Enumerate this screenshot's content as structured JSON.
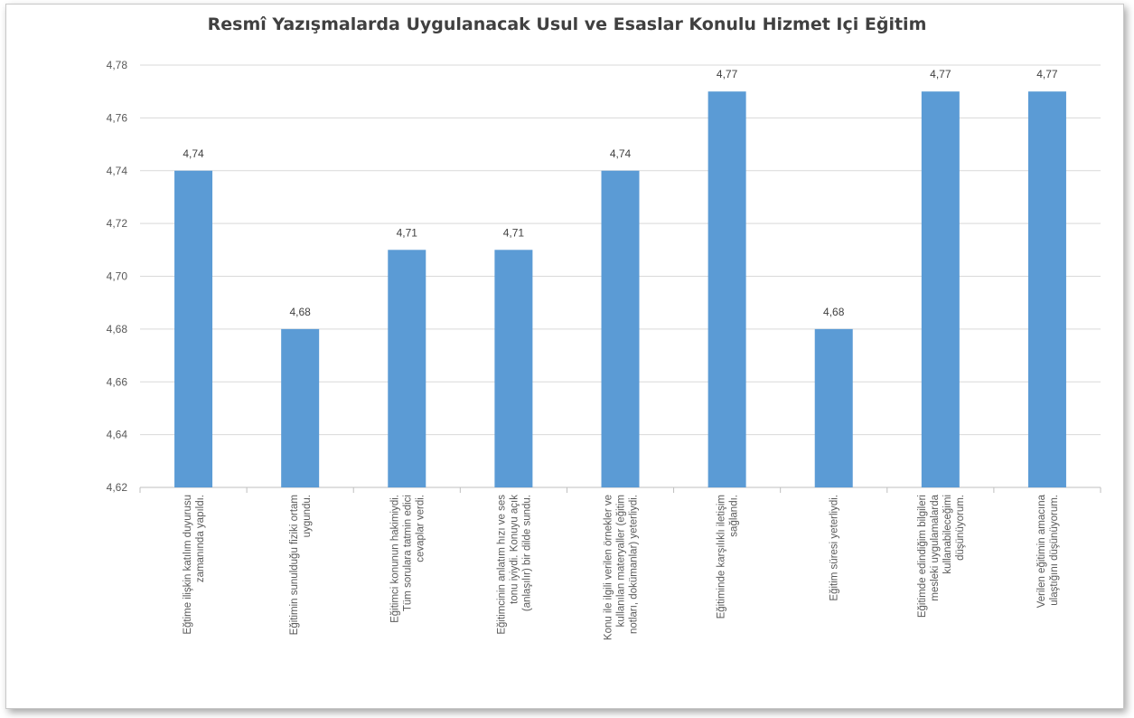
{
  "chart_data": {
    "type": "bar",
    "title": "Resmî Yazışmalarda Uygulanacak Usul ve Esaslar Konulu Hizmet Içi Eğitim",
    "xlabel": "",
    "ylabel": "",
    "ylim": [
      4.62,
      4.78
    ],
    "yticks": [
      "4,62",
      "4,64",
      "4,66",
      "4,68",
      "4,70",
      "4,72",
      "4,74",
      "4,76",
      "4,78"
    ],
    "grid": true,
    "legend": "none",
    "bar_color": "#5b9bd5",
    "categories": [
      [
        "Eğtime ilişkin katılım duyurusu",
        "zamanında yapıldı."
      ],
      [
        "Eğitimin sunulduğu fiziki ortam",
        "uygundu."
      ],
      [
        "Eğitimci konunun hakimiydi.",
        "Tüm sorulara tatmin edici",
        "cevaplar verdi."
      ],
      [
        "Eğitimcinin anlatım hızı ve ses",
        "tonu iyiydi. Konuyu açık",
        "(anlaşılır) bir dilde sundu."
      ],
      [
        "Konu ile ilgili verilen örnekler ve",
        "kullanılan materyaller (eğitim",
        "notları, dokümanlar) yeterliydi."
      ],
      [
        "Eğitiminde karşılıklı iletişim",
        "sağlandı."
      ],
      [
        "Eğitim süresi yeterliydi."
      ],
      [
        "Eğitimde edindiğim bilgileri",
        "mesleki uygulamalarda",
        "kullanabileceğimi",
        "düşünüyorum."
      ],
      [
        "Verilen eğitimin amacına",
        "ulaştığını düşünüyorum."
      ]
    ],
    "values": [
      4.74,
      4.68,
      4.71,
      4.71,
      4.74,
      4.77,
      4.68,
      4.77,
      4.77
    ],
    "data_labels": [
      "4,74",
      "4,68",
      "4,71",
      "4,71",
      "4,74",
      "4,77",
      "4,68",
      "4,77",
      "4,77"
    ]
  }
}
